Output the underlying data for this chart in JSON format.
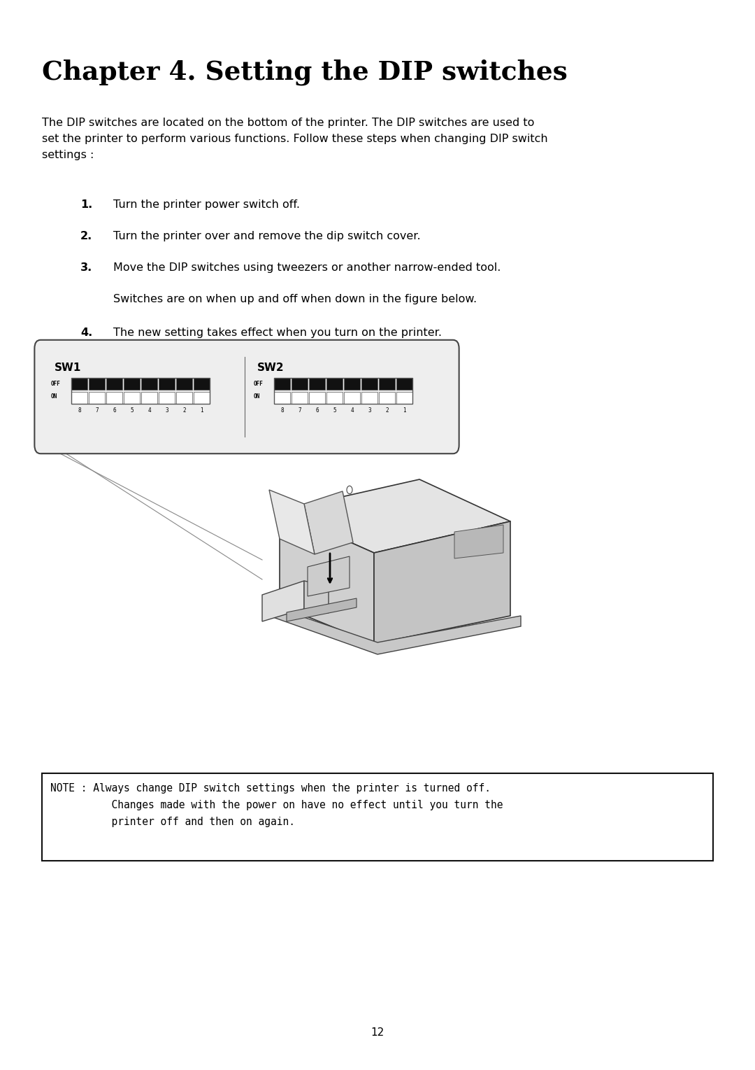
{
  "title": "Chapter 4. Setting the DIP switches",
  "body_font": "DejaVu Sans",
  "mono_font": "DejaVu Sans Mono",
  "serif_font": "DejaVu Serif",
  "background_color": "#ffffff",
  "text_color": "#000000",
  "intro_text": "The DIP switches are located on the bottom of the printer. The DIP switches are used to\nset the printer to perform various functions. Follow these steps when changing DIP switch\nsettings :",
  "step1": "Turn the printer power switch off.",
  "step2": "Turn the printer over and remove the dip switch cover.",
  "step3": "Move the DIP switches using tweezers or another narrow-ended tool.",
  "step3b": "Switches are on when up and off when down in the figure below.",
  "step4": "The new setting takes effect when you turn on the printer.",
  "note_text": "NOTE : Always change DIP switch settings when the printer is turned off.\n          Changes made with the power on have no effect until you turn the\n          printer off and then on again.",
  "page_number": "12",
  "switch_numbers": [
    "8",
    "7",
    "6",
    "5",
    "4",
    "3",
    "2",
    "1"
  ]
}
